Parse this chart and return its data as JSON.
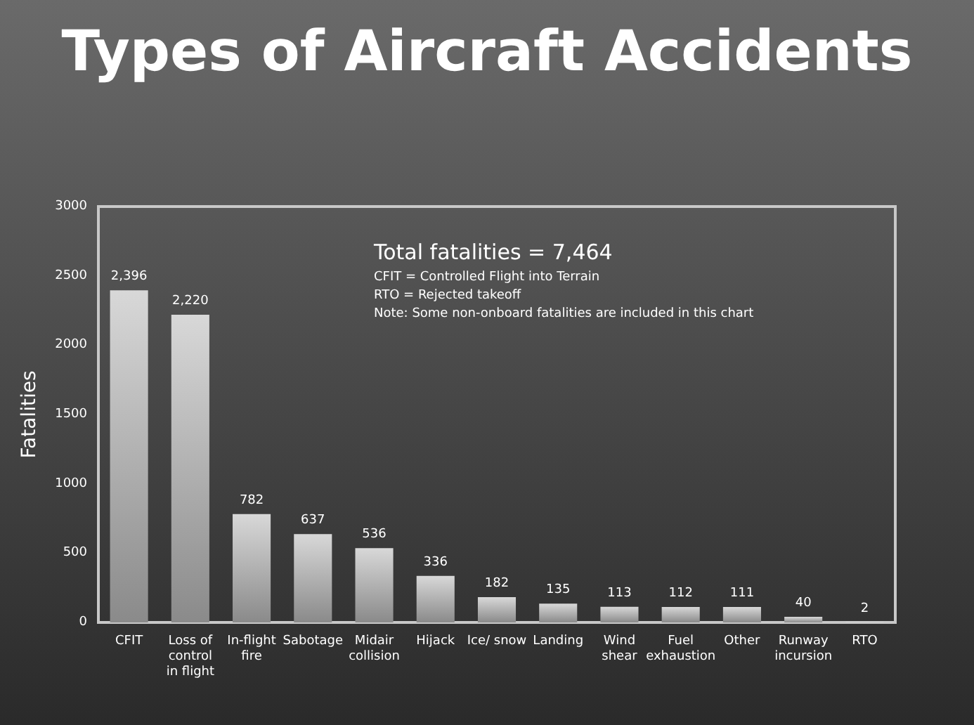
{
  "chart_data": {
    "type": "bar",
    "title": "Types of Aircraft Accidents",
    "ylabel": "Fatalities",
    "categories": [
      "CFIT",
      "Loss of control in flight",
      "In-flight fire",
      "Sabotage",
      "Midair collision",
      "Hijack",
      "Ice/ snow",
      "Landing",
      "Wind shear",
      "Fuel exhaustion",
      "Other",
      "Runway incursion",
      "RTO"
    ],
    "values": [
      2396,
      2220,
      782,
      637,
      536,
      336,
      182,
      135,
      113,
      112,
      111,
      40,
      2
    ],
    "value_labels": [
      "2,396",
      "2,220",
      "782",
      "637",
      "536",
      "336",
      "182",
      "135",
      "113",
      "112",
      "111",
      "40",
      "2"
    ],
    "color": "#d8d8d8",
    "ylim": [
      0,
      3000
    ],
    "yticks": [
      0,
      500,
      1000,
      1500,
      2000,
      2500,
      3000
    ],
    "grid": false,
    "annotations": [
      "Total fatalities = 7,464",
      "CFIT = Controlled Flight into Terrain",
      "RTO = Rejected takeoff",
      "Note: Some non-onboard fatalities are included in this chart"
    ]
  }
}
